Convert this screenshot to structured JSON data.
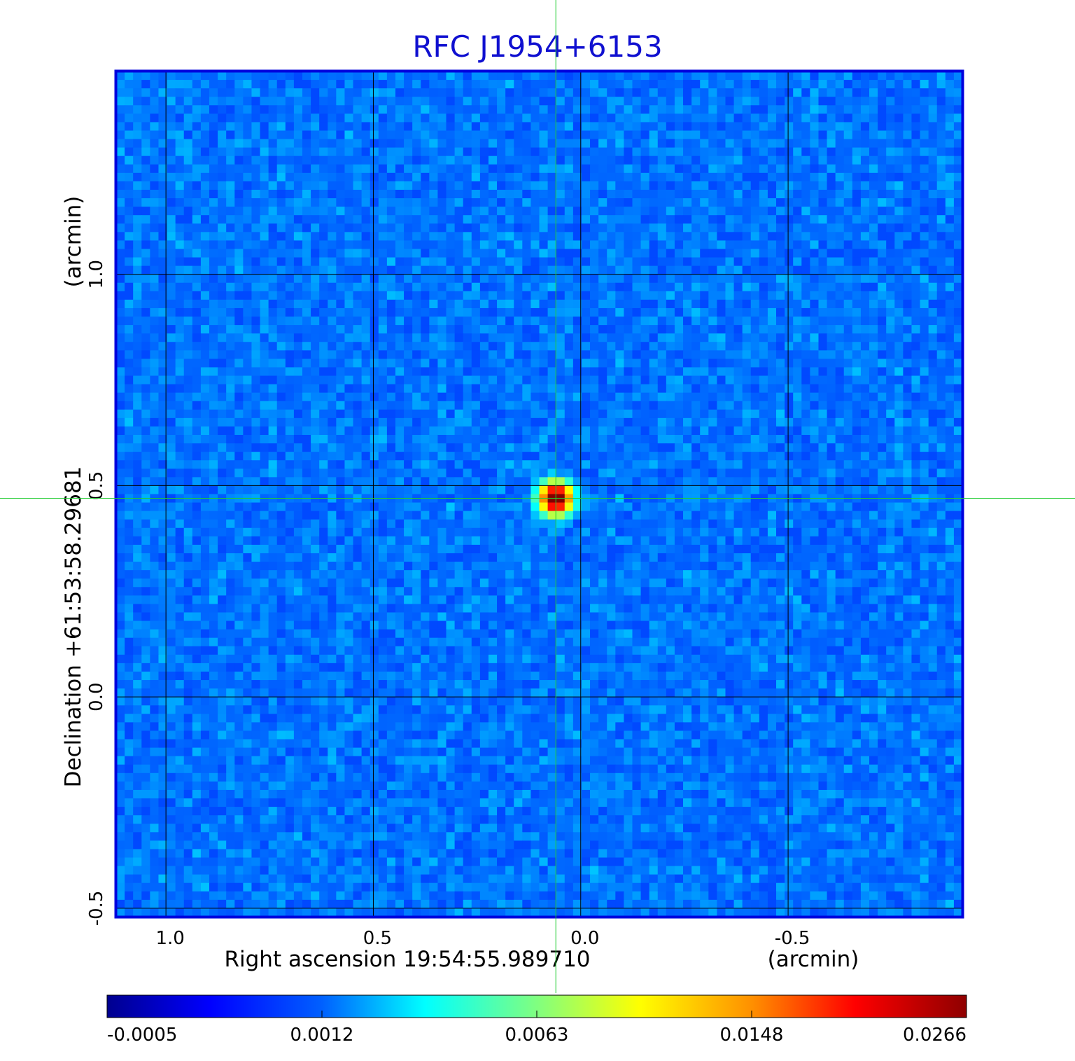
{
  "chart_data": {
    "type": "heatmap",
    "title": "RFC J1954+6153",
    "xlabel": "Right ascension  19:54:55.989710",
    "xunit": "(arcmin)",
    "ylabel": "Declination  +61:53:58.29681",
    "yunit": "(arcmin)",
    "x_range": [
      1.12,
      -0.92
    ],
    "y_range": [
      -0.52,
      1.48
    ],
    "x_ticks": [
      1.0,
      0.5,
      0.0,
      -0.5
    ],
    "x_tick_labels": [
      "1.0",
      "0.5",
      "0.0",
      "-0.5"
    ],
    "y_ticks": [
      -0.5,
      0.0,
      0.5,
      1.0
    ],
    "y_tick_labels": [
      "-0.5",
      "0.0",
      "0.5",
      "1.0"
    ],
    "grid": true,
    "colormap": "jet",
    "colorbar": {
      "orientation": "horizontal",
      "placement": "bottom",
      "tick_labels": [
        "-0.0005",
        "0.0012",
        "0.0063",
        "0.0148",
        "0.0266"
      ],
      "value_range": [
        -0.0005,
        0.0266
      ]
    },
    "source": {
      "x": 0.06,
      "y": 0.47,
      "peak": 0.0266
    },
    "background_level": -0.0001,
    "crosshair": {
      "x": 0.06,
      "y": 0.47,
      "color": "#22cc33"
    }
  },
  "colors": {
    "title": "#1010d0",
    "frame": "#0000dd",
    "grid": "#000000",
    "crosshair": "#22cc33"
  }
}
